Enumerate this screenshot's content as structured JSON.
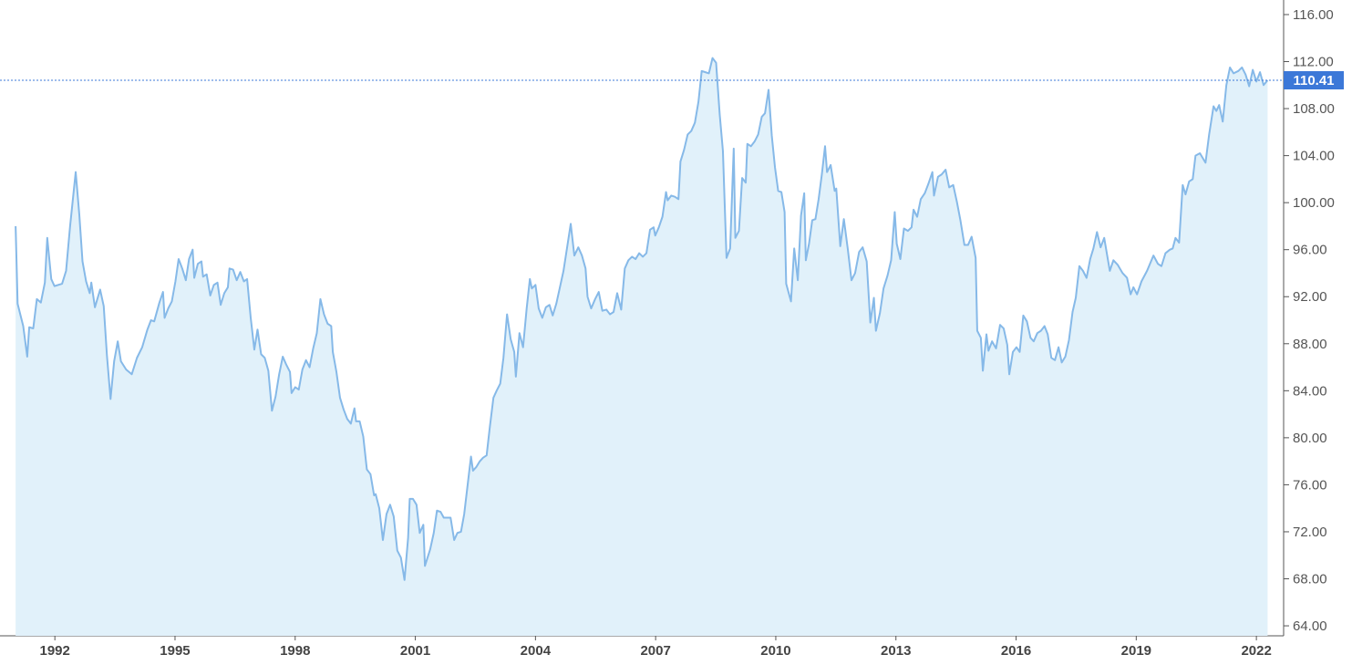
{
  "chart_data": {
    "type": "area",
    "color": "#86b9e8",
    "fill_color": "#e1f1fa",
    "last_value_color": "#3c78d8",
    "x": [
      1991.02,
      1991.07,
      1991.21,
      1991.31,
      1991.36,
      1991.46,
      1991.55,
      1991.65,
      1991.75,
      1991.81,
      1991.91,
      1991.99,
      1992.18,
      1992.28,
      1992.38,
      1992.52,
      1992.61,
      1992.69,
      1992.78,
      1992.87,
      1992.91,
      1993.0,
      1993.13,
      1993.22,
      1993.3,
      1993.39,
      1993.48,
      1993.57,
      1993.65,
      1993.78,
      1993.92,
      1994.05,
      1994.18,
      1994.31,
      1994.4,
      1994.48,
      1994.61,
      1994.7,
      1994.74,
      1994.83,
      1994.92,
      1995.01,
      1995.09,
      1995.18,
      1995.27,
      1995.35,
      1995.44,
      1995.48,
      1995.57,
      1995.66,
      1995.7,
      1995.79,
      1995.88,
      1995.97,
      1996.06,
      1996.14,
      1996.23,
      1996.32,
      1996.36,
      1996.45,
      1996.54,
      1996.63,
      1996.72,
      1996.8,
      1996.89,
      1996.98,
      1997.06,
      1997.15,
      1997.24,
      1997.33,
      1997.42,
      1997.51,
      1997.6,
      1997.69,
      1997.78,
      1997.87,
      1997.91,
      1998.0,
      1998.09,
      1998.18,
      1998.27,
      1998.36,
      1998.45,
      1998.54,
      1998.63,
      1998.72,
      1998.81,
      1998.9,
      1998.94,
      1999.03,
      1999.12,
      1999.21,
      1999.3,
      1999.39,
      1999.48,
      1999.52,
      1999.61,
      1999.7,
      1999.79,
      1999.88,
      1999.97,
      2000.01,
      2000.1,
      2000.19,
      2000.28,
      2000.37,
      2000.46,
      2000.55,
      2000.64,
      2000.73,
      2000.82,
      2000.86,
      2000.94,
      2001.03,
      2001.11,
      2001.2,
      2001.24,
      2001.37,
      2001.46,
      2001.54,
      2001.63,
      2001.71,
      2001.8,
      2001.88,
      2001.97,
      2002.05,
      2002.14,
      2002.22,
      2002.31,
      2002.39,
      2002.44,
      2002.52,
      2002.61,
      2002.69,
      2002.78,
      2002.86,
      2002.95,
      2003.03,
      2003.12,
      2003.2,
      2003.29,
      2003.38,
      2003.47,
      2003.51,
      2003.6,
      2003.69,
      2003.78,
      2003.86,
      2003.91,
      2004.0,
      2004.08,
      2004.17,
      2004.26,
      2004.35,
      2004.43,
      2004.52,
      2004.61,
      2004.7,
      2004.79,
      2004.88,
      2004.97,
      2005.07,
      2005.16,
      2005.25,
      2005.3,
      2005.39,
      2005.49,
      2005.58,
      2005.67,
      2005.77,
      2005.86,
      2005.95,
      2006.04,
      2006.14,
      2006.23,
      2006.32,
      2006.41,
      2006.5,
      2006.59,
      2006.68,
      2006.77,
      2006.86,
      2006.95,
      2006.99,
      2007.08,
      2007.17,
      2007.26,
      2007.3,
      2007.39,
      2007.48,
      2007.57,
      2007.62,
      2007.71,
      2007.8,
      2007.89,
      2007.98,
      2008.07,
      2008.15,
      2008.24,
      2008.33,
      2008.42,
      2008.51,
      2008.6,
      2008.68,
      2008.77,
      2008.86,
      2008.95,
      2008.99,
      2009.08,
      2009.16,
      2009.25,
      2009.29,
      2009.38,
      2009.47,
      2009.56,
      2009.65,
      2009.73,
      2009.82,
      2009.9,
      2009.98,
      2010.06,
      2010.14,
      2010.22,
      2010.26,
      2010.38,
      2010.46,
      2010.55,
      2010.63,
      2010.71,
      2010.75,
      2010.83,
      2010.91,
      2010.99,
      2011.07,
      2011.15,
      2011.23,
      2011.28,
      2011.37,
      2011.47,
      2011.51,
      2011.61,
      2011.7,
      2011.8,
      2011.89,
      2011.98,
      2012.08,
      2012.17,
      2012.27,
      2012.36,
      2012.45,
      2012.5,
      2012.6,
      2012.69,
      2012.79,
      2012.88,
      2012.97,
      2013.02,
      2013.11,
      2013.2,
      2013.3,
      2013.39,
      2013.44,
      2013.53,
      2013.62,
      2013.72,
      2013.81,
      2013.91,
      2013.95,
      2014.05,
      2014.14,
      2014.24,
      2014.33,
      2014.43,
      2014.52,
      2014.61,
      2014.71,
      2014.8,
      2014.89,
      2014.99,
      2015.03,
      2015.12,
      2015.17,
      2015.26,
      2015.31,
      2015.4,
      2015.5,
      2015.6,
      2015.69,
      2015.78,
      2015.83,
      2015.92,
      2016.01,
      2016.09,
      2016.18,
      2016.27,
      2016.36,
      2016.44,
      2016.53,
      2016.62,
      2016.71,
      2016.79,
      2016.88,
      2016.97,
      2017.06,
      2017.14,
      2017.23,
      2017.32,
      2017.41,
      2017.49,
      2017.58,
      2017.67,
      2017.76,
      2017.85,
      2017.93,
      2018.02,
      2018.11,
      2018.2,
      2018.34,
      2018.43,
      2018.54,
      2018.66,
      2018.77,
      2018.86,
      2018.93,
      2019.02,
      2019.13,
      2019.27,
      2019.43,
      2019.54,
      2019.63,
      2019.73,
      2019.84,
      2019.91,
      2019.98,
      2020.07,
      2020.16,
      2020.23,
      2020.32,
      2020.41,
      2020.48,
      2020.59,
      2020.73,
      2020.82,
      2020.93,
      2021.0,
      2021.07,
      2021.16,
      2021.25,
      2021.34,
      2021.43,
      2021.55,
      2021.64,
      2021.73,
      2021.82,
      2021.91,
      2022.0,
      2022.09,
      2022.18,
      2022.28
    ],
    "values": [
      98.0,
      91.4,
      89.5,
      86.9,
      89.4,
      89.3,
      91.8,
      91.5,
      93.2,
      97.0,
      93.5,
      92.9,
      93.1,
      94.2,
      98.0,
      102.6,
      99,
      95,
      93.3,
      92.3,
      93.2,
      91.1,
      92.6,
      91.2,
      87,
      83.3,
      86.5,
      88.2,
      86.5,
      85.8,
      85.4,
      86.8,
      87.7,
      89.2,
      90.0,
      89.9,
      91.5,
      92.4,
      90.2,
      91.0,
      91.6,
      93.3,
      95.2,
      94.4,
      93.4,
      95.2,
      96.0,
      93.6,
      94.8,
      95.0,
      93.7,
      93.9,
      92.1,
      93.0,
      93.2,
      91.3,
      92.3,
      92.8,
      94.4,
      94.3,
      93.4,
      94.1,
      93.3,
      93.5,
      90.2,
      87.5,
      89.2,
      87.1,
      86.8,
      85.7,
      82.3,
      83.5,
      85.4,
      86.9,
      86.2,
      85.6,
      83.8,
      84.3,
      84.1,
      85.8,
      86.6,
      86.0,
      87.6,
      88.9,
      91.8,
      90.5,
      89.7,
      89.5,
      87.3,
      85.6,
      83.4,
      82.4,
      81.6,
      81.2,
      82.5,
      81.4,
      81.4,
      80.1,
      77.3,
      76.9,
      75.1,
      75.2,
      74.0,
      71.3,
      73.5,
      74.3,
      73.3,
      70.4,
      69.8,
      67.9,
      71.5,
      74.8,
      74.8,
      74.3,
      71.9,
      72.6,
      69.1,
      70.5,
      71.9,
      73.8,
      73.7,
      73.2,
      73.2,
      73.2,
      71.3,
      71.9,
      72.0,
      73.5,
      76.1,
      78.4,
      77.2,
      77.5,
      78.0,
      78.3,
      78.5,
      80.9,
      83.4,
      84.0,
      84.6,
      86.8,
      90.5,
      88.4,
      87.3,
      85.2,
      88.9,
      87.7,
      91.0,
      93.5,
      92.7,
      93.0,
      91.0,
      90.2,
      91.1,
      91.3,
      90.4,
      91.4,
      92.8,
      94.2,
      96.2,
      98.2,
      95.5,
      96.2,
      95.5,
      94.4,
      92.0,
      91.0,
      91.8,
      92.4,
      90.8,
      90.9,
      90.5,
      90.7,
      92.3,
      90.9,
      94.4,
      95.1,
      95.4,
      95.2,
      95.7,
      95.4,
      95.7,
      97.7,
      97.9,
      97.2,
      97.9,
      98.8,
      100.9,
      100.2,
      100.6,
      100.5,
      100.3,
      103.5,
      104.5,
      105.8,
      106.1,
      106.8,
      108.6,
      111.2,
      111.1,
      111.0,
      112.3,
      111.9,
      107.5,
      104.4,
      95.3,
      96.1,
      104.6,
      97.0,
      97.6,
      102.1,
      101.7,
      105.0,
      104.8,
      105.2,
      105.8,
      107.3,
      107.6,
      109.6,
      105.7,
      103.0,
      101.0,
      100.9,
      99.2,
      93.1,
      91.6,
      96.1,
      93.4,
      98.9,
      100.8,
      95.1,
      96.5,
      98.5,
      98.6,
      100.3,
      102.4,
      104.8,
      102.6,
      103.2,
      101.0,
      101.2,
      96.3,
      98.6,
      96.0,
      93.4,
      94.0,
      95.8,
      96.2,
      95.0,
      89.8,
      91.9,
      89.1,
      90.6,
      92.7,
      93.8,
      95.1,
      99.2,
      96.5,
      95.2,
      97.8,
      97.6,
      97.9,
      99.4,
      98.8,
      100.3,
      100.8,
      101.6,
      102.6,
      100.6,
      102.2,
      102.4,
      102.8,
      101.3,
      101.5,
      100.1,
      98.5,
      96.4,
      96.4,
      97.1,
      95.3,
      89.1,
      88.5,
      85.7,
      88.8,
      87.4,
      88.2,
      87.6,
      89.6,
      89.3,
      87.9,
      85.4,
      87.3,
      87.7,
      87.3,
      90.4,
      89.9,
      88.5,
      88.2,
      88.9,
      89.1,
      89.5,
      88.8,
      86.8,
      86.6,
      87.7,
      86.4,
      86.9,
      88.3,
      90.7,
      91.9,
      94.6,
      94.2,
      93.6,
      95.2,
      96.1,
      97.5,
      96.2,
      97.0,
      94.2,
      95.1,
      94.7,
      94.0,
      93.6,
      92.2,
      92.8,
      92.2,
      93.3,
      94.2,
      95.5,
      94.8,
      94.6,
      95.7,
      96.0,
      96.1,
      97.0,
      96.6,
      101.5,
      100.7,
      101.8,
      102.0,
      104.0,
      104.2,
      103.4,
      105.8,
      108.2,
      107.8,
      108.3,
      106.9,
      110.0,
      111.5,
      111.0,
      111.2,
      111.5,
      110.9,
      109.9,
      111.3,
      110.3,
      111.1,
      110.0,
      110.41
    ],
    "xlim": [
      1990.63,
      2022.68
    ],
    "xticks": [
      1992,
      1995,
      1998,
      2001,
      2004,
      2007,
      2010,
      2013,
      2016,
      2019,
      2022
    ],
    "ylim": [
      63.15,
      117.24
    ],
    "yticks": [
      {
        "value": 64,
        "label": "64.00"
      },
      {
        "value": 68,
        "label": "68.00"
      },
      {
        "value": 72,
        "label": "72.00"
      },
      {
        "value": 76,
        "label": "76.00"
      },
      {
        "value": 80,
        "label": "80.00"
      },
      {
        "value": 84,
        "label": "84.00"
      },
      {
        "value": 88,
        "label": "88.00"
      },
      {
        "value": 92,
        "label": "92.00"
      },
      {
        "value": 96,
        "label": "96.00"
      },
      {
        "value": 100,
        "label": "100.00"
      },
      {
        "value": 104,
        "label": "104.00"
      },
      {
        "value": 108,
        "label": "108.00"
      },
      {
        "value": 112,
        "label": "112.00"
      },
      {
        "value": 116,
        "label": "116.00"
      }
    ]
  }
}
